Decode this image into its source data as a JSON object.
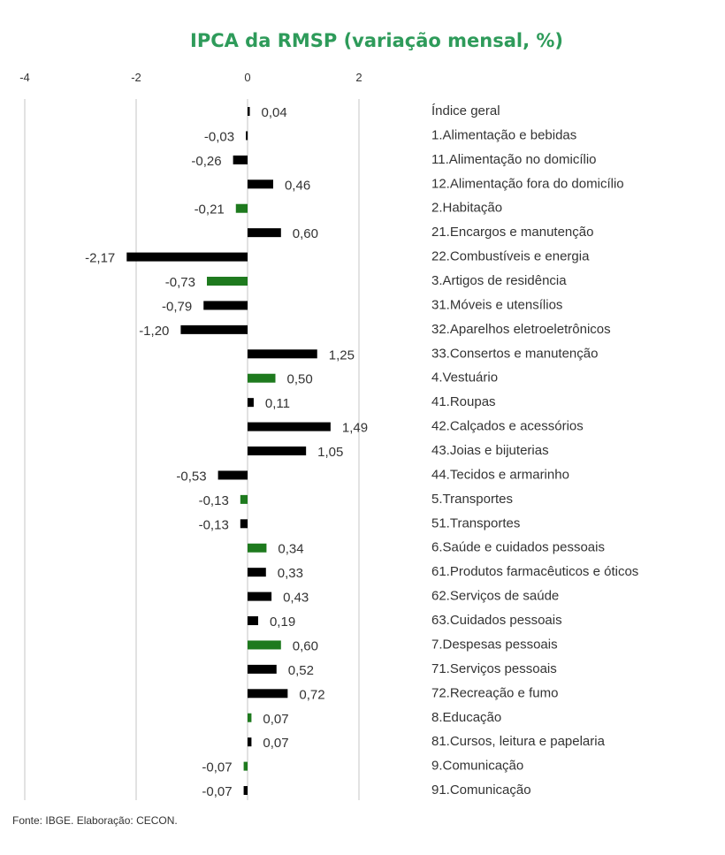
{
  "chart_data": {
    "type": "bar",
    "orientation": "horizontal",
    "title": "IPCA da RMSP (variação mensal, %)",
    "xlabel": "",
    "ylabel": "",
    "xlim": [
      -4,
      2
    ],
    "xticks": [
      -4,
      -2,
      0,
      2
    ],
    "tick_labels": [
      "-4",
      "-2",
      "0",
      "2"
    ],
    "grid": true,
    "legend": "none",
    "source": "Fonte: IBGE. Elaboração: CECON.",
    "colors": {
      "title": "#2e9b5a",
      "group": "#1e7a1e",
      "subitem": "#000000",
      "grid": "#d9d9d9"
    },
    "categories": [
      "Índice geral",
      "1.Alimentação e bebidas",
      "11.Alimentação no domicílio",
      "12.Alimentação fora do domicílio",
      "2.Habitação",
      "21.Encargos e manutenção",
      "22.Combustíveis e energia",
      "3.Artigos de residência",
      "31.Móveis e utensílios",
      "32.Aparelhos eletroeletrônicos",
      "33.Consertos e manutenção",
      "4.Vestuário",
      "41.Roupas",
      "42.Calçados e acessórios",
      "43.Joias e bijuterias",
      "44.Tecidos e armarinho",
      "5.Transportes",
      "51.Transportes",
      "6.Saúde e cuidados pessoais",
      "61.Produtos farmacêuticos e óticos",
      "62.Serviços de saúde",
      "63.Cuidados pessoais",
      "7.Despesas pessoais",
      "71.Serviços pessoais",
      "72.Recreação e fumo",
      "8.Educação",
      "81.Cursos, leitura e papelaria",
      "9.Comunicação",
      "91.Comunicação"
    ],
    "values": [
      0.04,
      -0.03,
      -0.26,
      0.46,
      -0.21,
      0.6,
      -2.17,
      -0.73,
      -0.79,
      -1.2,
      1.25,
      0.5,
      0.11,
      1.49,
      1.05,
      -0.53,
      -0.13,
      -0.13,
      0.34,
      0.33,
      0.43,
      0.19,
      0.6,
      0.52,
      0.72,
      0.07,
      0.07,
      -0.07,
      -0.07
    ],
    "value_labels": [
      "0,04",
      "-0,03",
      "-0,26",
      "0,46",
      "-0,21",
      "0,60",
      "-2,17",
      "-0,73",
      "-0,79",
      "-1,20",
      "1,25",
      "0,50",
      "0,11",
      "1,49",
      "1,05",
      "-0,53",
      "-0,13",
      "-0,13",
      "0,34",
      "0,33",
      "0,43",
      "0,19",
      "0,60",
      "0,52",
      "0,72",
      "0,07",
      "0,07",
      "-0,07",
      "-0,07"
    ],
    "is_group": [
      false,
      false,
      false,
      false,
      true,
      false,
      false,
      true,
      false,
      false,
      false,
      true,
      false,
      false,
      false,
      false,
      true,
      false,
      true,
      false,
      false,
      false,
      true,
      false,
      false,
      true,
      false,
      true,
      false
    ]
  }
}
